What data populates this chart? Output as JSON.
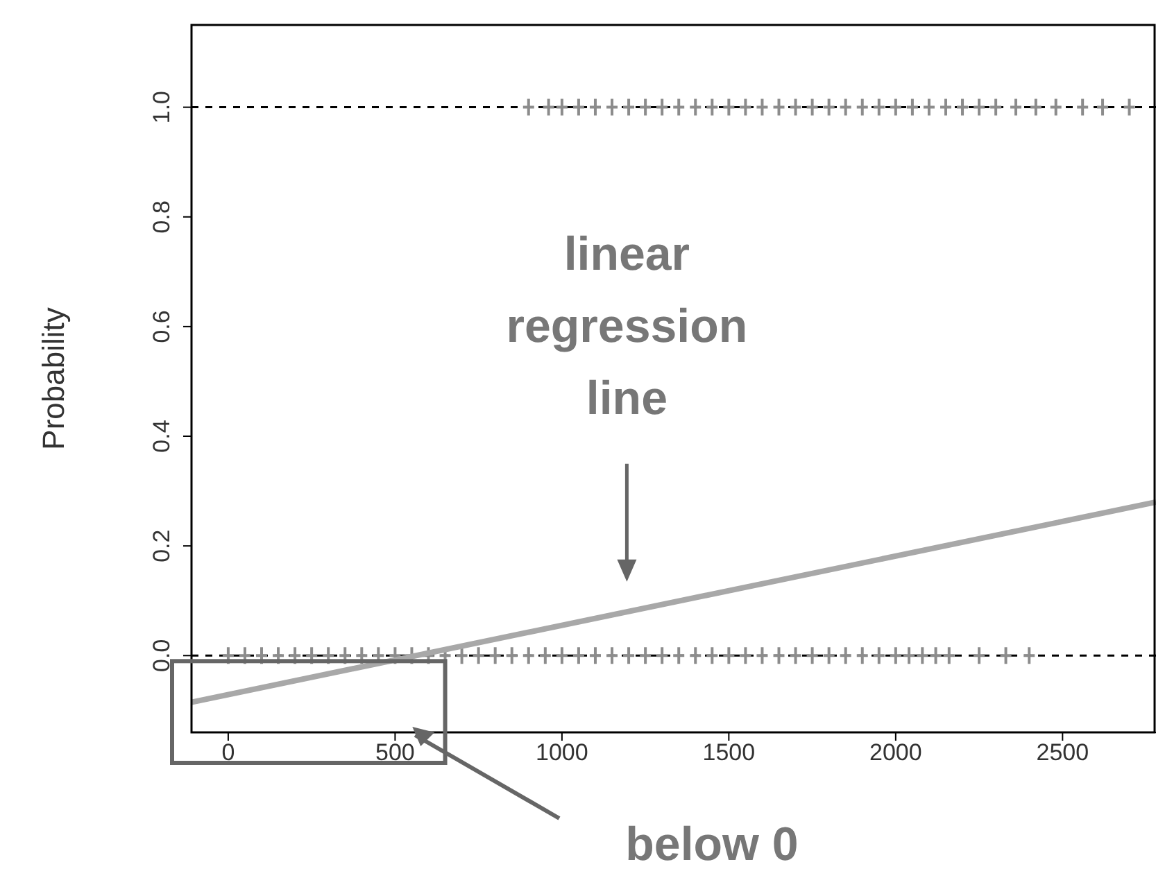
{
  "chart_data": {
    "type": "scatter",
    "ylabel": "Probability",
    "xlim": [
      -110,
      2780
    ],
    "ylim": [
      -0.14,
      1.15
    ],
    "xticks": [
      0,
      500,
      1000,
      1500,
      2000,
      2500
    ],
    "yticks": [
      {
        "value": 0,
        "label": "0.0"
      },
      {
        "value": 0.2,
        "label": "0.2"
      },
      {
        "value": 0.4,
        "label": "0.4"
      },
      {
        "value": 0.6,
        "label": "0.6"
      },
      {
        "value": 0.8,
        "label": "0.8"
      },
      {
        "value": 1,
        "label": "1.0"
      }
    ],
    "marker": "cross",
    "series": [
      {
        "color": "#8c8c8c",
        "x": [
          0,
          50,
          100,
          150,
          200,
          250,
          300,
          350,
          400,
          450,
          500,
          550,
          600,
          650,
          700,
          750,
          800,
          850,
          900,
          950,
          1000,
          1050,
          1100,
          1150,
          1200,
          1250,
          1300,
          1350,
          1400,
          1450,
          1500,
          1550,
          1600,
          1650,
          1700,
          1750,
          1800,
          1850,
          1900,
          1950,
          2000,
          2040,
          2080,
          2120,
          2160,
          2250,
          2330,
          2400
        ],
        "values": [
          0,
          0,
          0,
          0,
          0,
          0,
          0,
          0,
          0,
          0,
          0,
          0,
          0,
          0,
          0,
          0,
          0,
          0,
          0,
          0,
          0,
          0,
          0,
          0,
          0,
          0,
          0,
          0,
          0,
          0,
          0,
          0,
          0,
          0,
          0,
          0,
          0,
          0,
          0,
          0,
          0,
          0,
          0,
          0,
          0,
          0,
          0,
          0
        ]
      },
      {
        "color": "#8c8c8c",
        "x": [
          900,
          960,
          1000,
          1050,
          1100,
          1150,
          1200,
          1250,
          1300,
          1350,
          1400,
          1450,
          1500,
          1550,
          1600,
          1650,
          1700,
          1750,
          1800,
          1850,
          1900,
          1950,
          2000,
          2050,
          2100,
          2150,
          2200,
          2250,
          2300,
          2360,
          2420,
          2480,
          2560,
          2620,
          2700
        ],
        "values": [
          1,
          1,
          1,
          1,
          1,
          1,
          1,
          1,
          1,
          1,
          1,
          1,
          1,
          1,
          1,
          1,
          1,
          1,
          1,
          1,
          1,
          1,
          1,
          1,
          1,
          1,
          1,
          1,
          1,
          1,
          1,
          1,
          1,
          1,
          1
        ]
      },
      {
        "type": "line",
        "marker": "none",
        "color": "#a8a8a8",
        "x": [
          -110,
          2780
        ],
        "values": [
          -0.085,
          0.28
        ]
      }
    ],
    "ref_lines": [
      {
        "axis": "y",
        "value": 0,
        "color": "#000000",
        "line_style": "dashed"
      },
      {
        "axis": "y",
        "value": 1,
        "color": "#000000",
        "line_style": "dashed"
      }
    ],
    "annotations": [
      "linear regression line",
      "below 0"
    ]
  }
}
